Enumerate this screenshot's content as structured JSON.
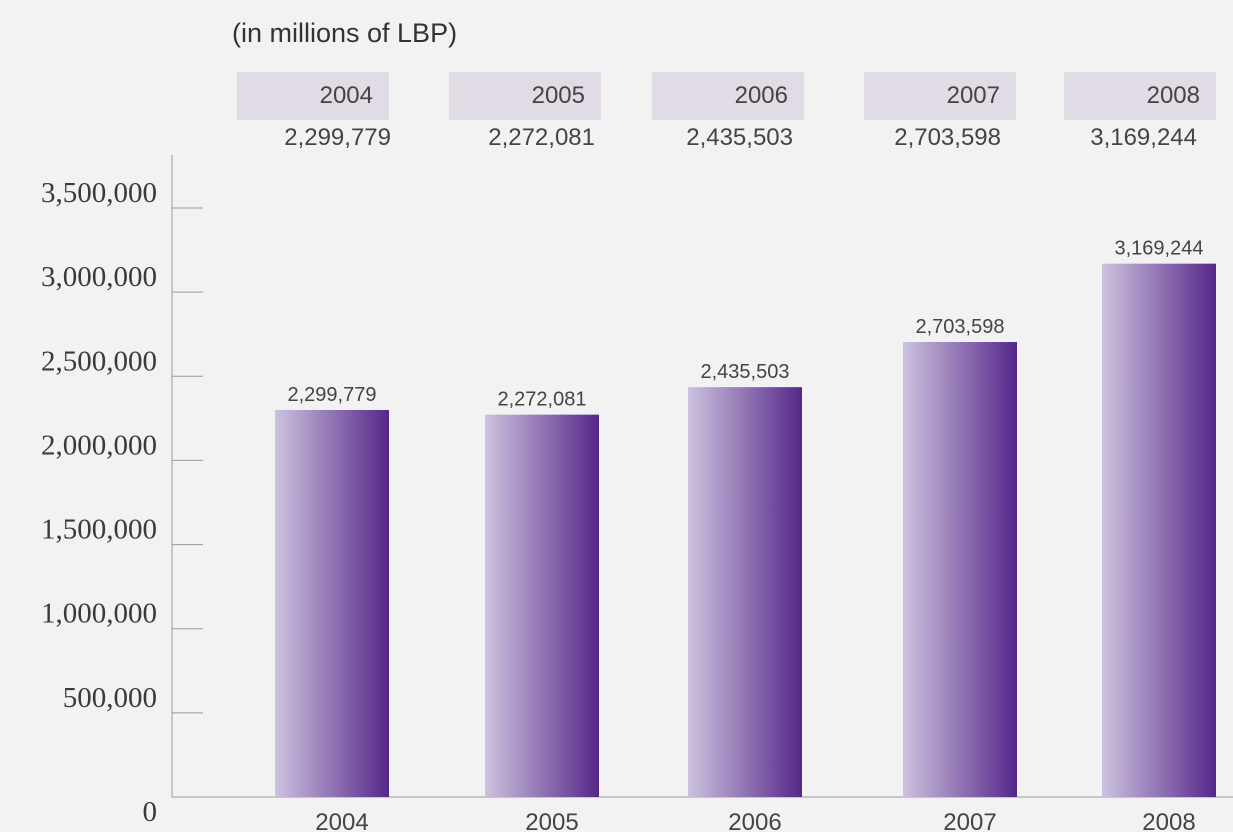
{
  "unit_note": "(in millions of LBP)",
  "table": {
    "years": [
      "2004",
      "2005",
      "2006",
      "2007",
      "2008"
    ],
    "values": [
      "2,299,779",
      "2,272,081",
      "2,435,503",
      "2,703,598",
      "3,169,244"
    ]
  },
  "chart_data": {
    "type": "bar",
    "title": "",
    "xlabel": "",
    "ylabel": "",
    "categories": [
      "2004",
      "2005",
      "2006",
      "2007",
      "2008"
    ],
    "values": [
      2299779,
      2272081,
      2435503,
      2703598,
      3169244
    ],
    "data_labels": [
      "2,299,779",
      "2,272,081",
      "2,435,503",
      "2,703,598",
      "3,169,244"
    ],
    "ylim": [
      0,
      3500000
    ],
    "yticks": [
      0,
      500000,
      1000000,
      1500000,
      2000000,
      2500000,
      3000000,
      3500000
    ],
    "ytick_labels": [
      "0",
      "500,000",
      "1,000,000",
      "1,500,000",
      "2,000,000",
      "2,500,000",
      "3,000,000",
      "3,500,000"
    ],
    "grid": false,
    "legend": "none",
    "colors": {
      "bar_light": "#cdc2df",
      "bar_dark": "#55278a",
      "header_fill": "#e0dbe5",
      "axis": "#999999",
      "background": "#f2f2f2"
    }
  }
}
